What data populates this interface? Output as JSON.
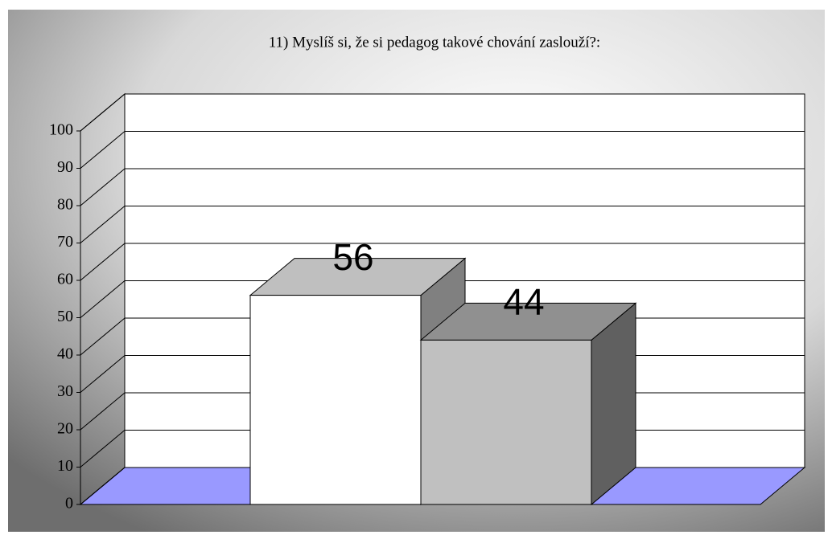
{
  "chart_data": {
    "type": "bar3d",
    "title": "11) Myslíš si, že si pedagog takové chování zaslouží?:",
    "categories": [
      null,
      null
    ],
    "values": [
      56,
      44
    ],
    "colors": [
      "#ffffff",
      "#c0c0c0"
    ],
    "ylim": [
      0,
      100
    ],
    "yticks": [
      0,
      10,
      20,
      30,
      40,
      50,
      60,
      70,
      80,
      90,
      100
    ],
    "grid": true
  }
}
